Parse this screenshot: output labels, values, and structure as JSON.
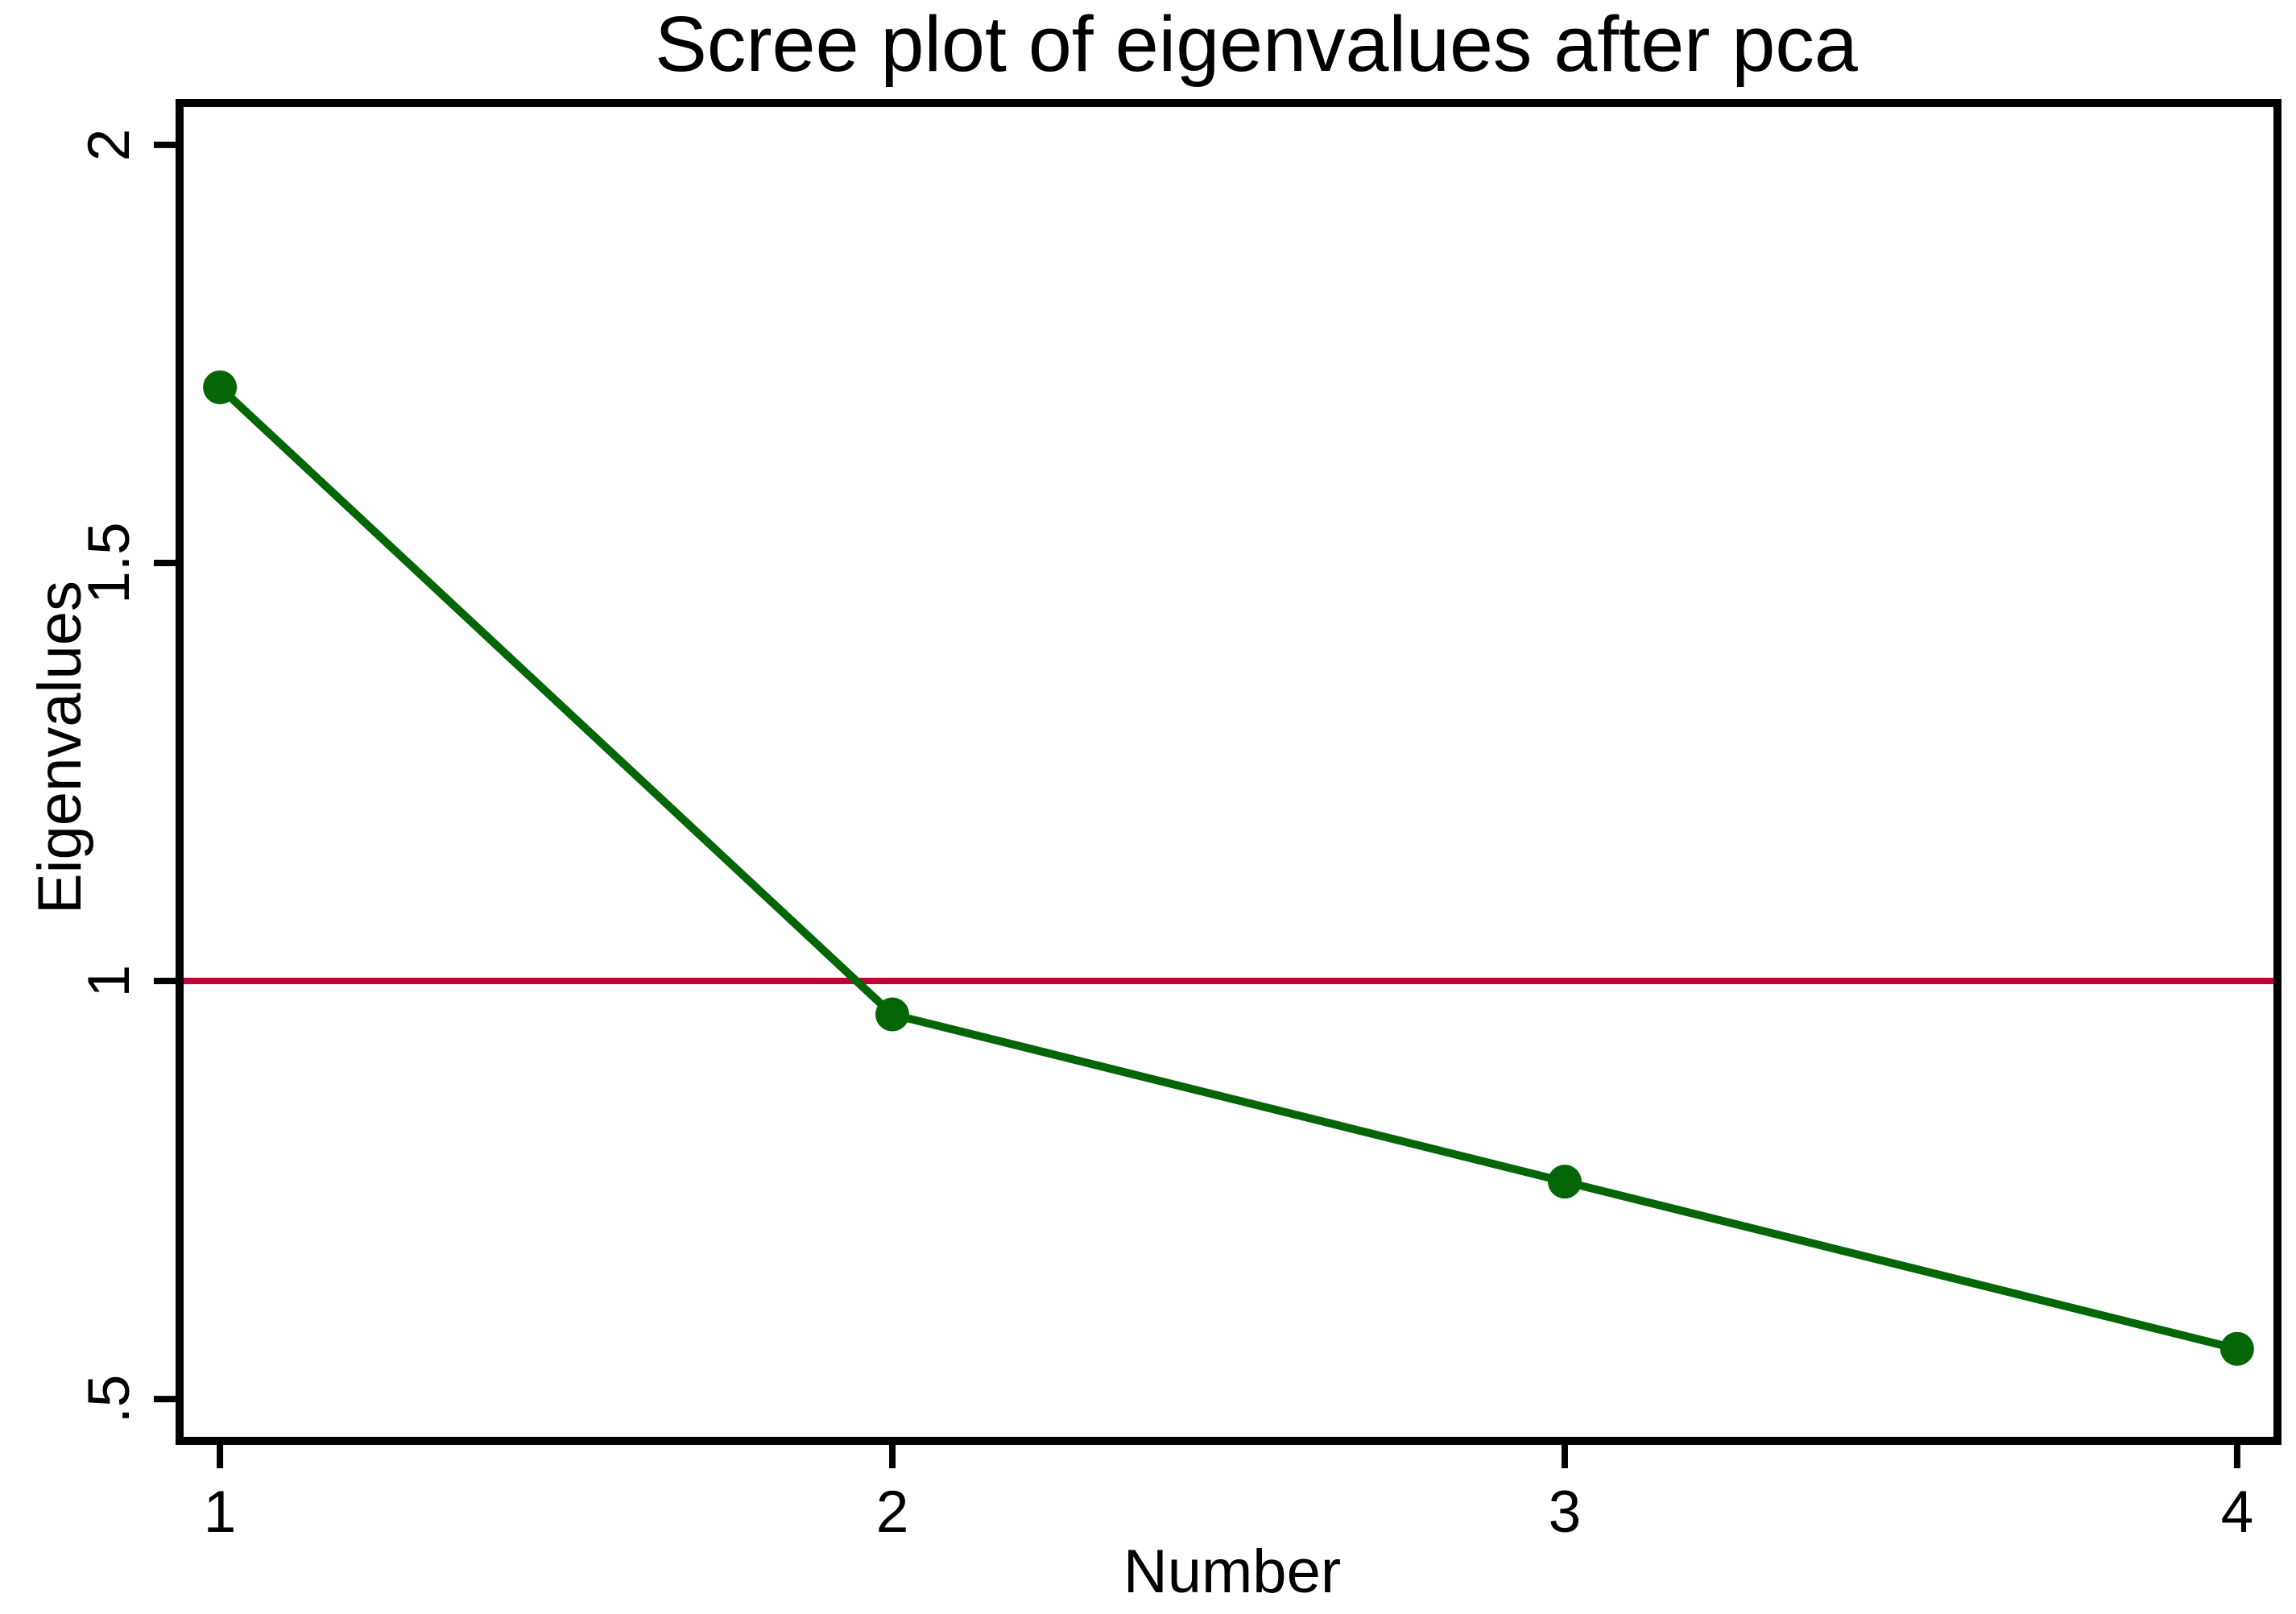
{
  "figure": {
    "background": "#FFFFFF"
  },
  "chart_data": {
    "type": "line",
    "title": "Scree plot of eigenvalues after pca",
    "xlabel": "Number",
    "ylabel": "Eigenvalues",
    "x": [
      1,
      2,
      3,
      4
    ],
    "series": [
      {
        "name": "Eigenvalues",
        "values": [
          1.71,
          0.96,
          0.76,
          0.56
        ],
        "color": "#056608",
        "marker": "filled-circle"
      }
    ],
    "reference_line": {
      "orientation": "horizontal",
      "value": 1,
      "color": "#C10538"
    },
    "x_ticks": [
      {
        "value": 1,
        "label": "1"
      },
      {
        "value": 2,
        "label": "2"
      },
      {
        "value": 3,
        "label": "3"
      },
      {
        "value": 4,
        "label": "4"
      }
    ],
    "y_ticks": [
      {
        "value": 0.5,
        "label": ".5"
      },
      {
        "value": 1,
        "label": "1"
      },
      {
        "value": 1.5,
        "label": "1.5"
      },
      {
        "value": 2,
        "label": "2"
      }
    ],
    "xlim": [
      0.94,
      4.06
    ],
    "ylim": [
      0.45,
      2.05
    ],
    "grid": false,
    "legend": "none",
    "axis_color": "#000000",
    "plot_border": "box"
  }
}
